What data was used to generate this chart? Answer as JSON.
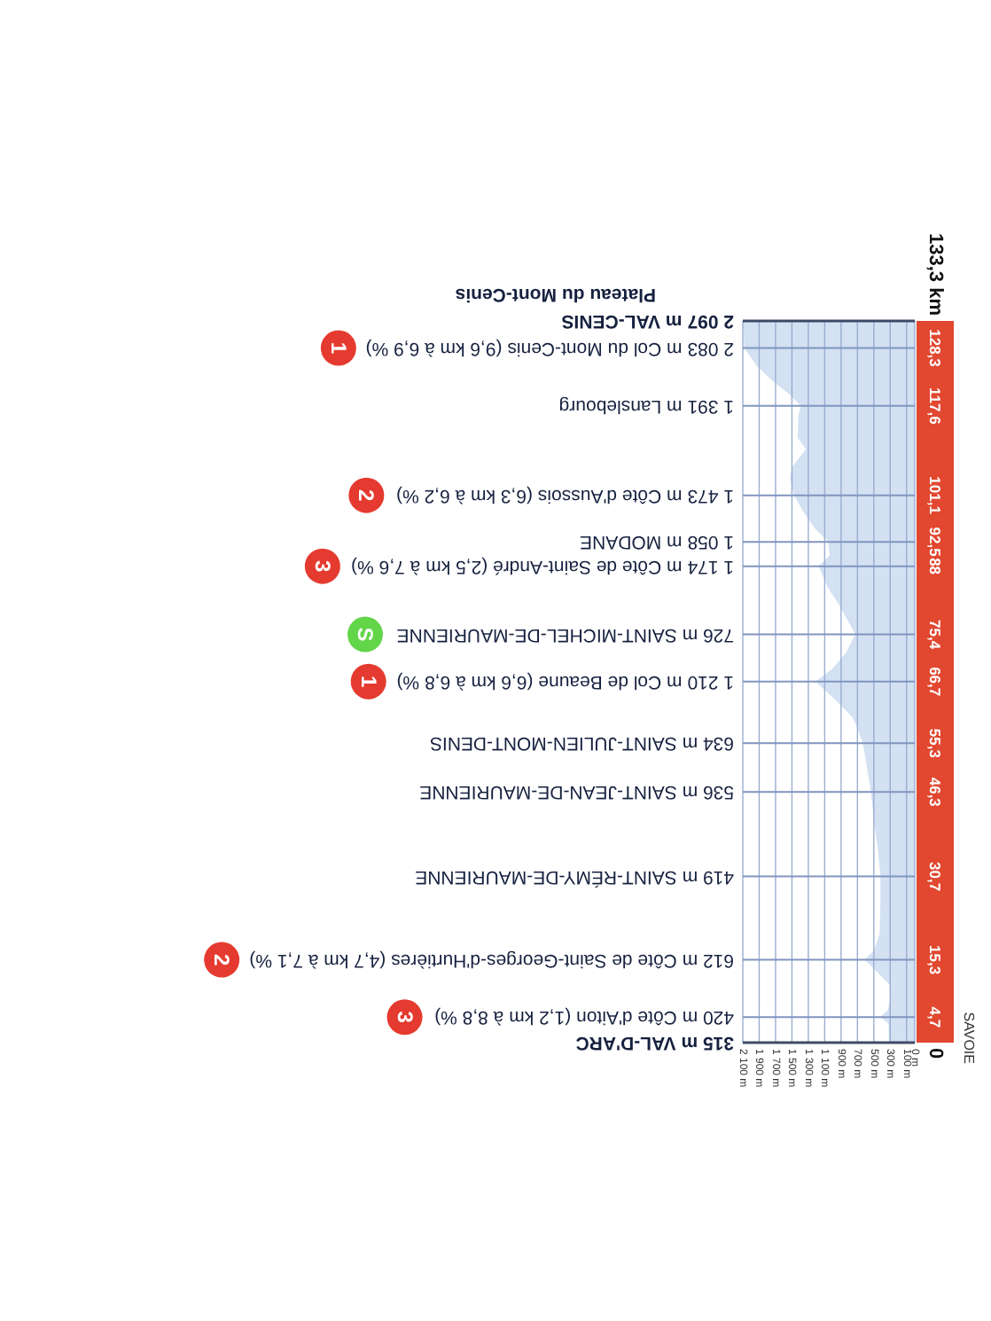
{
  "chart_data": {
    "type": "area",
    "orientation": "horizontal",
    "color": "#d3e1f2",
    "grid": true,
    "x": [
      0,
      3.5,
      4.7,
      6.0,
      8.0,
      10.6,
      13.0,
      15.3,
      17.0,
      20.0,
      25.0,
      30.7,
      35.0,
      40.0,
      46.3,
      50.0,
      55.3,
      58.0,
      60.1,
      63.0,
      66.7,
      69.0,
      72.0,
      75.4,
      78.0,
      81.0,
      84.0,
      88.0,
      90.0,
      92.5,
      95.0,
      98.0,
      101.1,
      104.2,
      106.3,
      109.6,
      111.8,
      116.0,
      117.6,
      120.0,
      122.0,
      125.0,
      128.3,
      131.0,
      133.3
    ],
    "values": [
      315,
      320,
      420,
      330,
      300,
      300,
      460,
      612,
      500,
      430,
      420,
      419,
      445,
      490,
      536,
      575,
      634,
      700,
      760,
      950,
      1210,
      1010,
      840,
      726,
      820,
      930,
      1060,
      1174,
      1040,
      1058,
      1220,
      1360,
      1473,
      1520,
      1500,
      1330,
      1430,
      1420,
      1391,
      1550,
      1720,
      1930,
      2083,
      2090,
      2097
    ],
    "xlim": [
      2100,
      0
    ],
    "xticks": [
      {
        "value": 2100,
        "label": "2 100 m"
      },
      {
        "value": 1900,
        "label": "1 900 m"
      },
      {
        "value": 1700,
        "label": "1 700 m"
      },
      {
        "value": 1500,
        "label": "1 500 m"
      },
      {
        "value": 1300,
        "label": "1 300 m"
      },
      {
        "value": 1100,
        "label": "1 100 m"
      },
      {
        "value": 900,
        "label": "900 m"
      },
      {
        "value": 700,
        "label": "700 m"
      },
      {
        "value": 500,
        "label": "500 m"
      },
      {
        "value": 300,
        "label": "300 m"
      },
      {
        "value": 100,
        "label": "100 m"
      },
      {
        "value": 0,
        "label": "0 m"
      }
    ],
    "ylim": [
      0,
      133.3
    ],
    "yticks": [
      {
        "value": 0,
        "label": "0"
      },
      {
        "value": 4.7,
        "label": "4,7"
      },
      {
        "value": 15.3,
        "label": "15,3"
      },
      {
        "value": 30.7,
        "label": "30,7"
      },
      {
        "value": 46.3,
        "label": "46,3"
      },
      {
        "value": 55.3,
        "label": "55,3"
      },
      {
        "value": 66.7,
        "label": "66,7"
      },
      {
        "value": 75.4,
        "label": "75,4"
      },
      {
        "value": 88,
        "label": "88"
      },
      {
        "value": 92.5,
        "label": "92,5"
      },
      {
        "value": 101.1,
        "label": "101,1"
      },
      {
        "value": 117.6,
        "label": "117,6"
      },
      {
        "value": 128.3,
        "label": "128,3"
      },
      {
        "value": 133.3,
        "label": null
      }
    ],
    "annotations": [
      "315 m VAL-D'ARC",
      "420 m Côte d'Aiton (1,2 km à 8,8 %)",
      "3",
      "612 m Côte de Saint-Georges-d'Hurtières (4,7 km à 7,1 %)",
      "2",
      "419 m SAINT-RÉMY-DE-MAURIENNE",
      "536 m SAINT-JEAN-DE-MAURIENNE",
      "634 m SAINT-JULIEN-MONT-DENIS",
      "1 210 m Col de Beaune (6,6 km à 6,8 %)",
      "1",
      "726 m SAINT-MICHEL-DE-MAURIENNE",
      "S",
      "1 174 m Côte de Saint-André (2,5 km à 7,6 %)",
      "3",
      "1 058 m MODANE",
      "1 473 m Côte d'Aussois (6,3 km à 6,2 %)",
      "2",
      "1 391 m Lanslebourg",
      "2 083 m Col du Mont-Cenis (9,6 km à 6,9 %)",
      "1",
      "2 097 m VAL-CENIS",
      "Plateau du Mont-Cenis",
      "133,3 km",
      "SAVOIE"
    ]
  }
}
